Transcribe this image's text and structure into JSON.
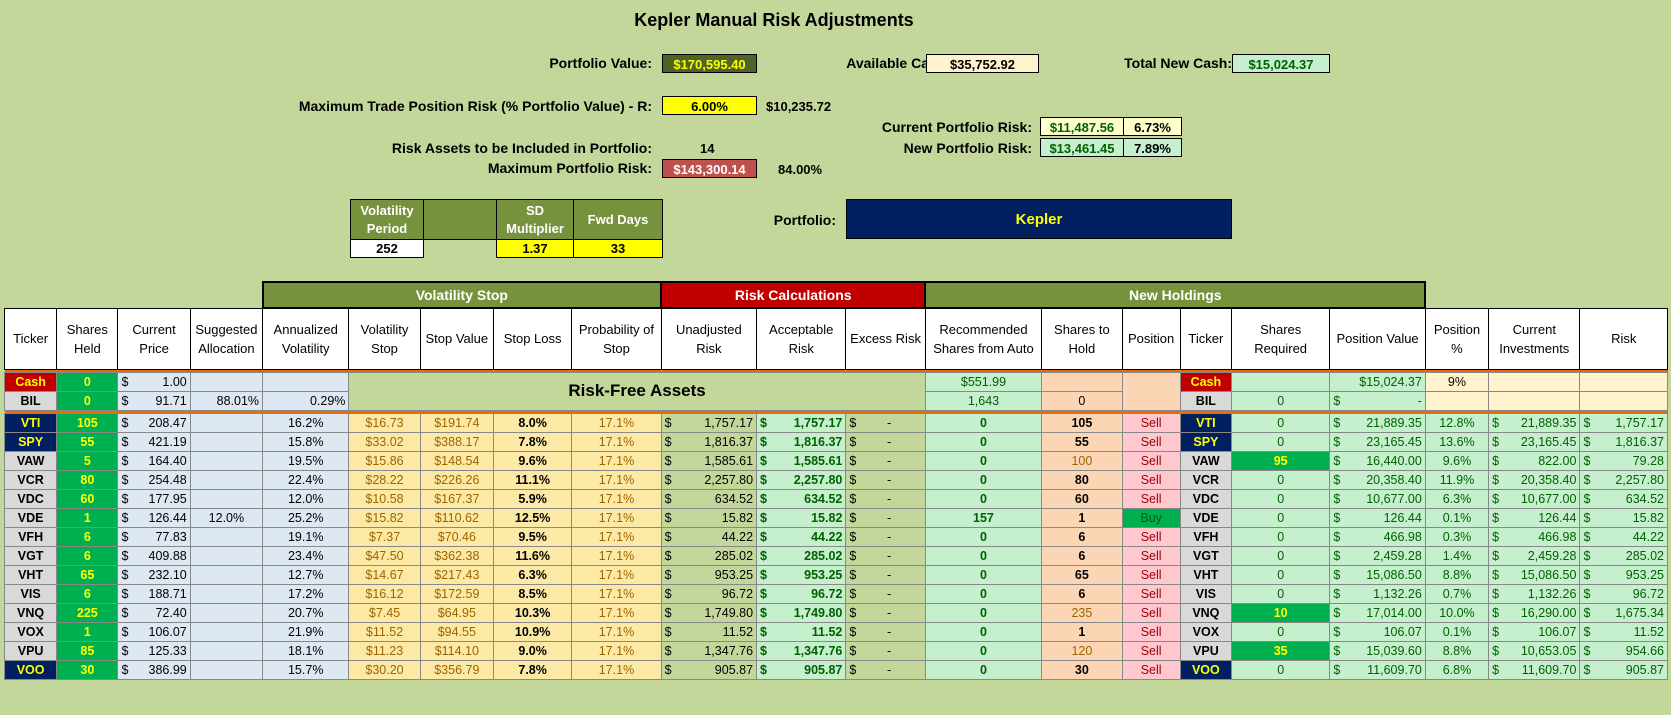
{
  "title": "Kepler Manual Risk Adjustments",
  "summary": {
    "portfolio_value_label": "Portfolio Value:",
    "portfolio_value": "$170,595.40",
    "available_cash_label": "Available Cash:",
    "available_cash": "$35,752.92",
    "total_new_cash_label": "Total New Cash:",
    "total_new_cash": "$15,024.37",
    "max_trade_risk_label": "Maximum Trade Position Risk (% Portfolio Value) - R:",
    "max_trade_risk_pct": "6.00%",
    "max_trade_risk_value": "$10,235.72",
    "current_risk_label": "Current Portfolio Risk:",
    "current_risk_value": "$11,487.56",
    "current_risk_pct": "6.73%",
    "new_risk_label": "New Portfolio Risk:",
    "new_risk_value": "$13,461.45",
    "new_risk_pct": "7.89%",
    "risk_assets_label": "Risk Assets to be Included in Portfolio:",
    "risk_assets_count": "14",
    "max_portfolio_risk_label": "Maximum Portfolio Risk:",
    "max_portfolio_risk_value": "$143,300.14",
    "max_portfolio_risk_pct": "84.00%",
    "portfolio_label": "Portfolio:",
    "portfolio_name": "Kepler"
  },
  "params": {
    "vol_period_label": "Volatility Period",
    "sd_mult_label": "SD Multiplier",
    "fwd_days_label": "Fwd Days",
    "vol_period": "252",
    "sd_mult": "1.37",
    "fwd_days": "33"
  },
  "groups": {
    "vol_stop": "Volatility Stop",
    "risk_calc": "Risk Calculations",
    "new_holdings": "New Holdings"
  },
  "headers": [
    "Ticker",
    "Shares Held",
    "Current Price",
    "Suggested Allocation",
    "Annualized Volatility",
    "Volatility Stop",
    "Stop Value",
    "Stop Loss",
    "Probability of Stop",
    "Unadjusted Risk",
    "Acceptable Risk",
    "Excess Risk",
    "Recommended Shares from Auto",
    "Shares to Hold",
    "Position",
    "Ticker",
    "Shares Required",
    "Position Value",
    "Position %",
    "Current Investments",
    "Risk"
  ],
  "risk_free_label": "Risk-Free Assets",
  "cash_row": {
    "ticker": "Cash",
    "held": "0",
    "price": "1.00",
    "rec": "$551.99",
    "ticker2": "Cash",
    "posval": "$15,024.37",
    "pospct": "9%"
  },
  "bil_row": {
    "ticker": "BIL",
    "held": "0",
    "price": "91.71",
    "alloc": "88.01%",
    "vol": "0.29%",
    "rec": "1,643",
    "hold": "0",
    "ticker2": "BIL",
    "req": "0",
    "posval": "-"
  },
  "rows": [
    {
      "t": "VTI",
      "c": "navy",
      "held": "105",
      "price": "208.47",
      "alloc": "",
      "vol": "16.2%",
      "vstop": "$16.73",
      "sval": "$191.74",
      "sloss": "8.0%",
      "prob": "17.1%",
      "unadj": "1,757.17",
      "acc": "1,757.17",
      "exc": "-",
      "rec": "0",
      "hold": "105",
      "pos": "Sell",
      "req": "0",
      "posval": "21,889.35",
      "pospct": "12.8%",
      "curinv": "21,889.35",
      "risk": "1,757.17"
    },
    {
      "t": "SPY",
      "c": "navy",
      "held": "55",
      "price": "421.19",
      "alloc": "",
      "vol": "15.8%",
      "vstop": "$33.02",
      "sval": "$388.17",
      "sloss": "7.8%",
      "prob": "17.1%",
      "unadj": "1,816.37",
      "acc": "1,816.37",
      "exc": "-",
      "rec": "0",
      "hold": "55",
      "pos": "Sell",
      "req": "0",
      "posval": "23,165.45",
      "pospct": "13.6%",
      "curinv": "23,165.45",
      "risk": "1,816.37"
    },
    {
      "t": "VAW",
      "c": "grey",
      "held": "5",
      "price": "164.40",
      "alloc": "",
      "vol": "19.5%",
      "vstop": "$15.86",
      "sval": "$148.54",
      "sloss": "9.6%",
      "prob": "17.1%",
      "unadj": "1,585.61",
      "acc": "1,585.61",
      "exc": "-",
      "rec": "0",
      "hold": "100",
      "pos": "Sell",
      "req": "95",
      "posval": "16,440.00",
      "pospct": "9.6%",
      "curinv": "822.00",
      "risk": "79.28"
    },
    {
      "t": "VCR",
      "c": "grey",
      "held": "80",
      "price": "254.48",
      "alloc": "",
      "vol": "22.4%",
      "vstop": "$28.22",
      "sval": "$226.26",
      "sloss": "11.1%",
      "prob": "17.1%",
      "unadj": "2,257.80",
      "acc": "2,257.80",
      "exc": "-",
      "rec": "0",
      "hold": "80",
      "pos": "Sell",
      "req": "0",
      "posval": "20,358.40",
      "pospct": "11.9%",
      "curinv": "20,358.40",
      "risk": "2,257.80"
    },
    {
      "t": "VDC",
      "c": "grey",
      "held": "60",
      "price": "177.95",
      "alloc": "",
      "vol": "12.0%",
      "vstop": "$10.58",
      "sval": "$167.37",
      "sloss": "5.9%",
      "prob": "17.1%",
      "unadj": "634.52",
      "acc": "634.52",
      "exc": "-",
      "rec": "0",
      "hold": "60",
      "pos": "Sell",
      "req": "0",
      "posval": "10,677.00",
      "pospct": "6.3%",
      "curinv": "10,677.00",
      "risk": "634.52"
    },
    {
      "t": "VDE",
      "c": "grey",
      "held": "1",
      "price": "126.44",
      "alloc": "12.0%",
      "vol": "25.2%",
      "vstop": "$15.82",
      "sval": "$110.62",
      "sloss": "12.5%",
      "prob": "17.1%",
      "unadj": "15.82",
      "acc": "15.82",
      "exc": "-",
      "rec": "157",
      "hold": "1",
      "pos": "Buy",
      "req": "0",
      "posval": "126.44",
      "pospct": "0.1%",
      "curinv": "126.44",
      "risk": "15.82"
    },
    {
      "t": "VFH",
      "c": "grey",
      "held": "6",
      "price": "77.83",
      "alloc": "",
      "vol": "19.1%",
      "vstop": "$7.37",
      "sval": "$70.46",
      "sloss": "9.5%",
      "prob": "17.1%",
      "unadj": "44.22",
      "acc": "44.22",
      "exc": "-",
      "rec": "0",
      "hold": "6",
      "pos": "Sell",
      "req": "0",
      "posval": "466.98",
      "pospct": "0.3%",
      "curinv": "466.98",
      "risk": "44.22"
    },
    {
      "t": "VGT",
      "c": "grey",
      "held": "6",
      "price": "409.88",
      "alloc": "",
      "vol": "23.4%",
      "vstop": "$47.50",
      "sval": "$362.38",
      "sloss": "11.6%",
      "prob": "17.1%",
      "unadj": "285.02",
      "acc": "285.02",
      "exc": "-",
      "rec": "0",
      "hold": "6",
      "pos": "Sell",
      "req": "0",
      "posval": "2,459.28",
      "pospct": "1.4%",
      "curinv": "2,459.28",
      "risk": "285.02"
    },
    {
      "t": "VHT",
      "c": "grey",
      "held": "65",
      "price": "232.10",
      "alloc": "",
      "vol": "12.7%",
      "vstop": "$14.67",
      "sval": "$217.43",
      "sloss": "6.3%",
      "prob": "17.1%",
      "unadj": "953.25",
      "acc": "953.25",
      "exc": "-",
      "rec": "0",
      "hold": "65",
      "pos": "Sell",
      "req": "0",
      "posval": "15,086.50",
      "pospct": "8.8%",
      "curinv": "15,086.50",
      "risk": "953.25"
    },
    {
      "t": "VIS",
      "c": "grey",
      "held": "6",
      "price": "188.71",
      "alloc": "",
      "vol": "17.2%",
      "vstop": "$16.12",
      "sval": "$172.59",
      "sloss": "8.5%",
      "prob": "17.1%",
      "unadj": "96.72",
      "acc": "96.72",
      "exc": "-",
      "rec": "0",
      "hold": "6",
      "pos": "Sell",
      "req": "0",
      "posval": "1,132.26",
      "pospct": "0.7%",
      "curinv": "1,132.26",
      "risk": "96.72"
    },
    {
      "t": "VNQ",
      "c": "grey",
      "held": "225",
      "price": "72.40",
      "alloc": "",
      "vol": "20.7%",
      "vstop": "$7.45",
      "sval": "$64.95",
      "sloss": "10.3%",
      "prob": "17.1%",
      "unadj": "1,749.80",
      "acc": "1,749.80",
      "exc": "-",
      "rec": "0",
      "hold": "235",
      "pos": "Sell",
      "req": "10",
      "posval": "17,014.00",
      "pospct": "10.0%",
      "curinv": "16,290.00",
      "risk": "1,675.34"
    },
    {
      "t": "VOX",
      "c": "grey",
      "held": "1",
      "price": "106.07",
      "alloc": "",
      "vol": "21.9%",
      "vstop": "$11.52",
      "sval": "$94.55",
      "sloss": "10.9%",
      "prob": "17.1%",
      "unadj": "11.52",
      "acc": "11.52",
      "exc": "-",
      "rec": "0",
      "hold": "1",
      "pos": "Sell",
      "req": "0",
      "posval": "106.07",
      "pospct": "0.1%",
      "curinv": "106.07",
      "risk": "11.52"
    },
    {
      "t": "VPU",
      "c": "grey",
      "held": "85",
      "price": "125.33",
      "alloc": "",
      "vol": "18.1%",
      "vstop": "$11.23",
      "sval": "$114.10",
      "sloss": "9.0%",
      "prob": "17.1%",
      "unadj": "1,347.76",
      "acc": "1,347.76",
      "exc": "-",
      "rec": "0",
      "hold": "120",
      "pos": "Sell",
      "req": "35",
      "posval": "15,039.60",
      "pospct": "8.8%",
      "curinv": "10,653.05",
      "risk": "954.66"
    },
    {
      "t": "VOO",
      "c": "navy",
      "held": "30",
      "price": "386.99",
      "alloc": "",
      "vol": "15.7%",
      "vstop": "$30.20",
      "sval": "$356.79",
      "sloss": "7.8%",
      "prob": "17.1%",
      "unadj": "905.87",
      "acc": "905.87",
      "exc": "-",
      "rec": "0",
      "hold": "30",
      "pos": "Sell",
      "req": "0",
      "posval": "11,609.70",
      "pospct": "6.8%",
      "curinv": "11,609.70",
      "risk": "905.87"
    }
  ],
  "colors": {
    "background": "#c4d79b",
    "navy": "#002060",
    "green": "#00b050",
    "red_header": "#c00000",
    "olive_header": "#76923c"
  }
}
